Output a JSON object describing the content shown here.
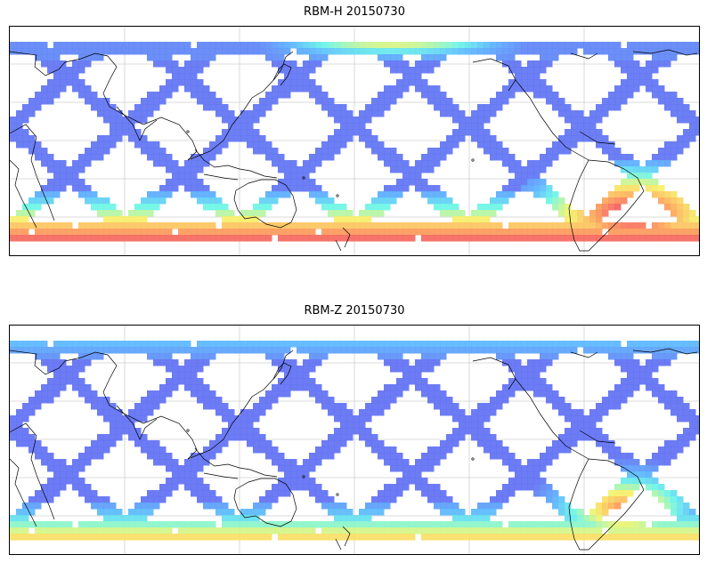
{
  "panels": [
    {
      "id": "rbm-h",
      "title": "RBM-H 20150730",
      "field": "horizontal",
      "colors": {
        "low": "#6363f0",
        "mid": "#5ab4ff",
        "cyan": "#6af5e8",
        "yellow": "#f5f56a",
        "orange": "#ffb15a",
        "red": "#f55f5f",
        "dark_red": "#b86060"
      }
    },
    {
      "id": "rbm-z",
      "title": "RBM-Z 20150730",
      "field": "vertical",
      "colors": {
        "low": "#6363f0",
        "mid": "#5ab4ff",
        "cyan": "#6af5e8",
        "yellow": "#f5f56a",
        "orange": "#ffb15a",
        "red": "#f55f5f",
        "dark_red": "#b86060"
      }
    }
  ],
  "map": {
    "projection": "equirectangular",
    "central_longitude": 180,
    "gridlines": true,
    "coastlines": true,
    "colormap": "jet"
  }
}
